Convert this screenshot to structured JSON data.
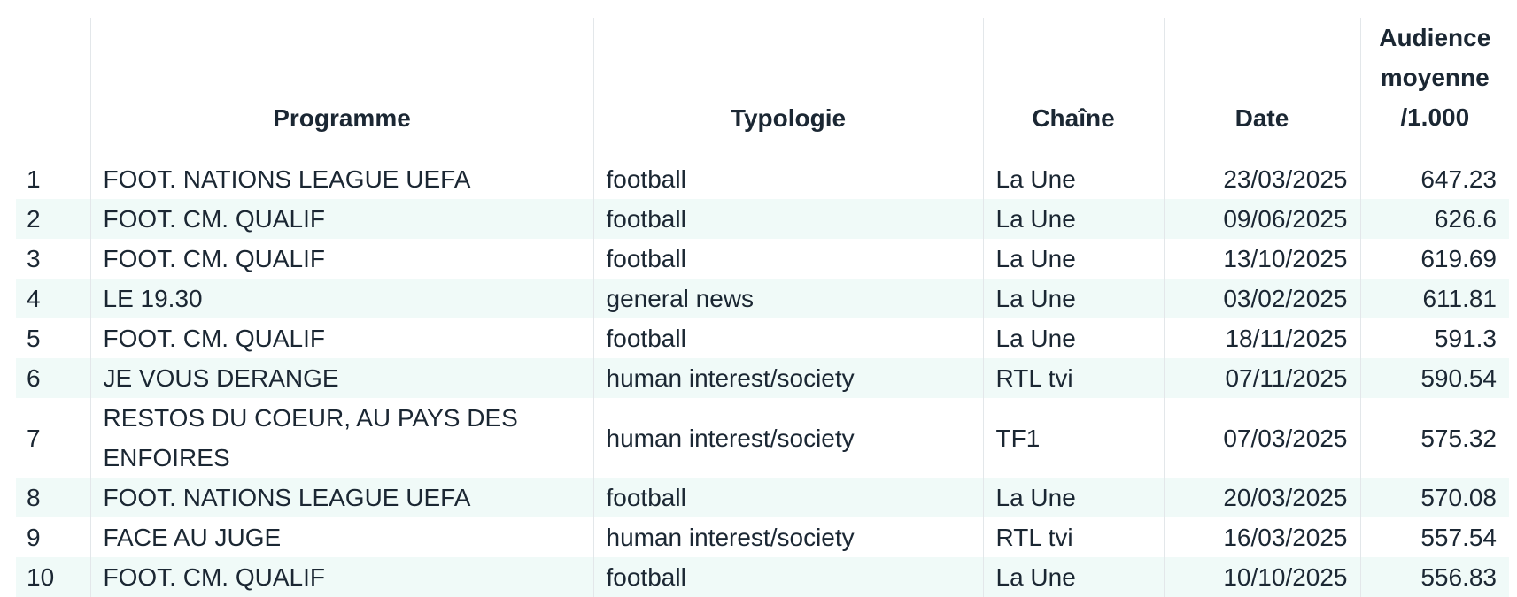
{
  "chart_data": {
    "type": "table",
    "columns": [
      "",
      "Programme",
      "Typologie",
      "Chaîne",
      "Date",
      "Audience moyenne /1.000"
    ],
    "rows": [
      {
        "rank": "1",
        "programme": "FOOT. NATIONS LEAGUE UEFA",
        "typologie": "football",
        "chaine": "La Une",
        "date": "23/03/2025",
        "audience": "647.23"
      },
      {
        "rank": "2",
        "programme": "FOOT. CM. QUALIF",
        "typologie": "football",
        "chaine": "La Une",
        "date": "09/06/2025",
        "audience": "626.6"
      },
      {
        "rank": "3",
        "programme": "FOOT. CM. QUALIF",
        "typologie": "football",
        "chaine": "La Une",
        "date": "13/10/2025",
        "audience": "619.69"
      },
      {
        "rank": "4",
        "programme": "LE 19.30",
        "typologie": "general news",
        "chaine": "La Une",
        "date": "03/02/2025",
        "audience": "611.81"
      },
      {
        "rank": "5",
        "programme": "FOOT. CM. QUALIF",
        "typologie": "football",
        "chaine": "La Une",
        "date": "18/11/2025",
        "audience": "591.3"
      },
      {
        "rank": "6",
        "programme": "JE VOUS DERANGE",
        "typologie": "human interest/society",
        "chaine": "RTL tvi",
        "date": "07/11/2025",
        "audience": "590.54"
      },
      {
        "rank": "7",
        "programme": "RESTOS DU COEUR, AU PAYS DES ENFOIRES",
        "typologie": "human interest/society",
        "chaine": "TF1",
        "date": "07/03/2025",
        "audience": "575.32"
      },
      {
        "rank": "8",
        "programme": "FOOT. NATIONS LEAGUE UEFA",
        "typologie": "football",
        "chaine": "La Une",
        "date": "20/03/2025",
        "audience": "570.08"
      },
      {
        "rank": "9",
        "programme": "FACE AU JUGE",
        "typologie": "human interest/society",
        "chaine": "RTL tvi",
        "date": "16/03/2025",
        "audience": "557.54"
      },
      {
        "rank": "10",
        "programme": "FOOT. CM. QUALIF",
        "typologie": "football",
        "chaine": "La Une",
        "date": "10/10/2025",
        "audience": "556.83"
      }
    ]
  },
  "colors": {
    "text": "#1b2733",
    "stripe": "#f0faf8",
    "divider": "#e3e7ea"
  }
}
